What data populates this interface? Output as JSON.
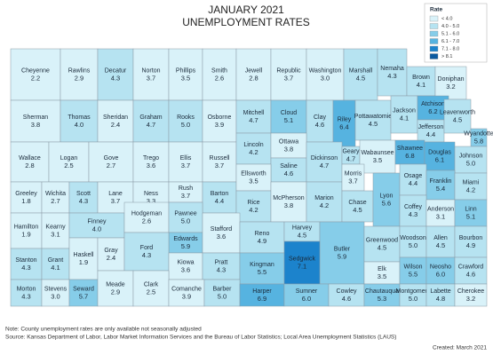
{
  "header": {
    "title_line1": "JANUARY 2021",
    "title_line2": "UNEMPLOYMENT RATES"
  },
  "legend": {
    "title": "Rate",
    "items": [
      {
        "label": "< 4.0",
        "color": "#d9f2f9"
      },
      {
        "label": "4.0 - 5.0",
        "color": "#b6e3f1"
      },
      {
        "label": "5.1 - 6.0",
        "color": "#86cde9"
      },
      {
        "label": "6.1 - 7.0",
        "color": "#56b3e0"
      },
      {
        "label": "7.1 - 8.0",
        "color": "#1c83cc"
      },
      {
        "label": "> 8.1",
        "color": "#0b5aa0"
      }
    ]
  },
  "counties": [
    {
      "name": "Cheyenne",
      "rate": "2.2",
      "color": "#d9f2f9"
    },
    {
      "name": "Rawlins",
      "rate": "2.9",
      "color": "#d9f2f9"
    },
    {
      "name": "Decatur",
      "rate": "4.3",
      "color": "#b6e3f1"
    },
    {
      "name": "Norton",
      "rate": "3.7",
      "color": "#d9f2f9"
    },
    {
      "name": "Phillips",
      "rate": "3.5",
      "color": "#d9f2f9"
    },
    {
      "name": "Smith",
      "rate": "2.6",
      "color": "#d9f2f9"
    },
    {
      "name": "Jewell",
      "rate": "2.8",
      "color": "#d9f2f9"
    },
    {
      "name": "Republic",
      "rate": "3.7",
      "color": "#d9f2f9"
    },
    {
      "name": "Washington",
      "rate": "3.0",
      "color": "#d9f2f9"
    },
    {
      "name": "Marshall",
      "rate": "4.5",
      "color": "#b6e3f1"
    },
    {
      "name": "Nemaha",
      "rate": "4.3",
      "color": "#b6e3f1"
    },
    {
      "name": "Brown",
      "rate": "4.1",
      "color": "#b6e3f1"
    },
    {
      "name": "Doniphan",
      "rate": "3.2",
      "color": "#d9f2f9"
    },
    {
      "name": "Sherman",
      "rate": "3.8",
      "color": "#d9f2f9"
    },
    {
      "name": "Thomas",
      "rate": "4.0",
      "color": "#b6e3f1"
    },
    {
      "name": "Sheridan",
      "rate": "2.4",
      "color": "#d9f2f9"
    },
    {
      "name": "Graham",
      "rate": "4.7",
      "color": "#b6e3f1"
    },
    {
      "name": "Rooks",
      "rate": "5.0",
      "color": "#b6e3f1"
    },
    {
      "name": "Osborne",
      "rate": "3.9",
      "color": "#d9f2f9"
    },
    {
      "name": "Mitchell",
      "rate": "4.7",
      "color": "#b6e3f1"
    },
    {
      "name": "Cloud",
      "rate": "5.1",
      "color": "#86cde9"
    },
    {
      "name": "Clay",
      "rate": "4.6",
      "color": "#b6e3f1"
    },
    {
      "name": "Riley",
      "rate": "6.4",
      "color": "#56b3e0"
    },
    {
      "name": "Pottawatomie",
      "rate": "4.5",
      "color": "#b6e3f1"
    },
    {
      "name": "Jackson",
      "rate": "4.1",
      "color": "#b6e3f1"
    },
    {
      "name": "Atchison",
      "rate": "6.2",
      "color": "#56b3e0"
    },
    {
      "name": "Jefferson",
      "rate": "4.4",
      "color": "#b6e3f1"
    },
    {
      "name": "Leavenworth",
      "rate": "4.5",
      "color": "#b6e3f1"
    },
    {
      "name": "Wyandotte",
      "rate": "5.8",
      "color": "#86cde9"
    },
    {
      "name": "Wallace",
      "rate": "2.8",
      "color": "#d9f2f9"
    },
    {
      "name": "Logan",
      "rate": "2.5",
      "color": "#d9f2f9"
    },
    {
      "name": "Gove",
      "rate": "2.7",
      "color": "#d9f2f9"
    },
    {
      "name": "Trego",
      "rate": "3.6",
      "color": "#d9f2f9"
    },
    {
      "name": "Ellis",
      "rate": "3.7",
      "color": "#d9f2f9"
    },
    {
      "name": "Russell",
      "rate": "3.7",
      "color": "#d9f2f9"
    },
    {
      "name": "Lincoln",
      "rate": "4.2",
      "color": "#b6e3f1"
    },
    {
      "name": "Ottawa",
      "rate": "3.8",
      "color": "#d9f2f9"
    },
    {
      "name": "Saline",
      "rate": "4.6",
      "color": "#b6e3f1"
    },
    {
      "name": "Dickinson",
      "rate": "4.7",
      "color": "#b6e3f1"
    },
    {
      "name": "Geary",
      "rate": "4.7",
      "color": "#b6e3f1"
    },
    {
      "name": "Wabaunsee",
      "rate": "3.5",
      "color": "#d9f2f9"
    },
    {
      "name": "Shawnee",
      "rate": "6.8",
      "color": "#56b3e0"
    },
    {
      "name": "Douglas",
      "rate": "6.1",
      "color": "#56b3e0"
    },
    {
      "name": "Johnson",
      "rate": "5.0",
      "color": "#b6e3f1"
    },
    {
      "name": "Greeley",
      "rate": "1.8",
      "color": "#d9f2f9"
    },
    {
      "name": "Wichita",
      "rate": "2.7",
      "color": "#d9f2f9"
    },
    {
      "name": "Scott",
      "rate": "4.3",
      "color": "#b6e3f1"
    },
    {
      "name": "Lane",
      "rate": "3.7",
      "color": "#d9f2f9"
    },
    {
      "name": "Ness",
      "rate": "3.3",
      "color": "#d9f2f9"
    },
    {
      "name": "Rush",
      "rate": "3.7",
      "color": "#d9f2f9"
    },
    {
      "name": "Barton",
      "rate": "4.4",
      "color": "#b6e3f1"
    },
    {
      "name": "Ellsworth",
      "rate": "3.5",
      "color": "#d9f2f9"
    },
    {
      "name": "Rice",
      "rate": "4.2",
      "color": "#b6e3f1"
    },
    {
      "name": "McPherson",
      "rate": "3.8",
      "color": "#d9f2f9"
    },
    {
      "name": "Marion",
      "rate": "4.2",
      "color": "#b6e3f1"
    },
    {
      "name": "Morris",
      "rate": "3.7",
      "color": "#d9f2f9"
    },
    {
      "name": "Chase",
      "rate": "4.5",
      "color": "#b6e3f1"
    },
    {
      "name": "Lyon",
      "rate": "5.6",
      "color": "#86cde9"
    },
    {
      "name": "Osage",
      "rate": "4.4",
      "color": "#b6e3f1"
    },
    {
      "name": "Franklin",
      "rate": "5.4",
      "color": "#86cde9"
    },
    {
      "name": "Miami",
      "rate": "4.2",
      "color": "#b6e3f1"
    },
    {
      "name": "Coffey",
      "rate": "4.3",
      "color": "#b6e3f1"
    },
    {
      "name": "Anderson",
      "rate": "3.1",
      "color": "#d9f2f9"
    },
    {
      "name": "Linn",
      "rate": "5.1",
      "color": "#86cde9"
    },
    {
      "name": "Hamilton",
      "rate": "1.9",
      "color": "#d9f2f9"
    },
    {
      "name": "Kearny",
      "rate": "3.1",
      "color": "#d9f2f9"
    },
    {
      "name": "Finney",
      "rate": "4.0",
      "color": "#b6e3f1"
    },
    {
      "name": "Hodgeman",
      "rate": "2.6",
      "color": "#d9f2f9"
    },
    {
      "name": "Pawnee",
      "rate": "5.0",
      "color": "#b6e3f1"
    },
    {
      "name": "Edwards",
      "rate": "5.9",
      "color": "#86cde9"
    },
    {
      "name": "Stafford",
      "rate": "3.6",
      "color": "#d9f2f9"
    },
    {
      "name": "Reno",
      "rate": "4.9",
      "color": "#b6e3f1"
    },
    {
      "name": "Harvey",
      "rate": "4.5",
      "color": "#b6e3f1"
    },
    {
      "name": "Butler",
      "rate": "5.9",
      "color": "#86cde9"
    },
    {
      "name": "Greenwood",
      "rate": "4.5",
      "color": "#b6e3f1"
    },
    {
      "name": "Woodson",
      "rate": "5.0",
      "color": "#b6e3f1"
    },
    {
      "name": "Allen",
      "rate": "4.5",
      "color": "#b6e3f1"
    },
    {
      "name": "Bourbon",
      "rate": "4.9",
      "color": "#b6e3f1"
    },
    {
      "name": "Stanton",
      "rate": "4.3",
      "color": "#b6e3f1"
    },
    {
      "name": "Grant",
      "rate": "4.1",
      "color": "#b6e3f1"
    },
    {
      "name": "Haskell",
      "rate": "1.9",
      "color": "#d9f2f9"
    },
    {
      "name": "Gray",
      "rate": "2.4",
      "color": "#d9f2f9"
    },
    {
      "name": "Ford",
      "rate": "4.3",
      "color": "#b6e3f1"
    },
    {
      "name": "Kiowa",
      "rate": "3.6",
      "color": "#d9f2f9"
    },
    {
      "name": "Pratt",
      "rate": "4.3",
      "color": "#b6e3f1"
    },
    {
      "name": "Kingman",
      "rate": "5.5",
      "color": "#86cde9"
    },
    {
      "name": "Sedgwick",
      "rate": "7.1",
      "color": "#1c83cc"
    },
    {
      "name": "Elk",
      "rate": "3.5",
      "color": "#d9f2f9"
    },
    {
      "name": "Wilson",
      "rate": "5.5",
      "color": "#86cde9"
    },
    {
      "name": "Neosho",
      "rate": "6.0",
      "color": "#86cde9"
    },
    {
      "name": "Crawford",
      "rate": "4.6",
      "color": "#b6e3f1"
    },
    {
      "name": "Morton",
      "rate": "4.3",
      "color": "#b6e3f1"
    },
    {
      "name": "Stevens",
      "rate": "3.0",
      "color": "#d9f2f9"
    },
    {
      "name": "Seward",
      "rate": "5.7",
      "color": "#86cde9"
    },
    {
      "name": "Meade",
      "rate": "2.9",
      "color": "#d9f2f9"
    },
    {
      "name": "Clark",
      "rate": "2.5",
      "color": "#d9f2f9"
    },
    {
      "name": "Comanche",
      "rate": "3.9",
      "color": "#d9f2f9"
    },
    {
      "name": "Barber",
      "rate": "5.0",
      "color": "#b6e3f1"
    },
    {
      "name": "Harper",
      "rate": "6.9",
      "color": "#56b3e0"
    },
    {
      "name": "Sumner",
      "rate": "6.0",
      "color": "#86cde9"
    },
    {
      "name": "Cowley",
      "rate": "4.6",
      "color": "#b6e3f1"
    },
    {
      "name": "Chautauqua",
      "rate": "5.3",
      "color": "#86cde9"
    },
    {
      "name": "Montgomery",
      "rate": "5.0",
      "color": "#b6e3f1"
    },
    {
      "name": "Labette",
      "rate": "4.8",
      "color": "#b6e3f1"
    },
    {
      "name": "Cherokee",
      "rate": "3.2",
      "color": "#d9f2f9"
    }
  ],
  "footer": {
    "note": "Note: County unemployment rates are only available not seasonally adjusted",
    "source": "Source: Kansas Department of Labor, Labor Market Information Services and the Bureau of Labor Statistics; Local Area Unemployment Statistics (LAUS)",
    "created": "Created:  March 2021"
  }
}
